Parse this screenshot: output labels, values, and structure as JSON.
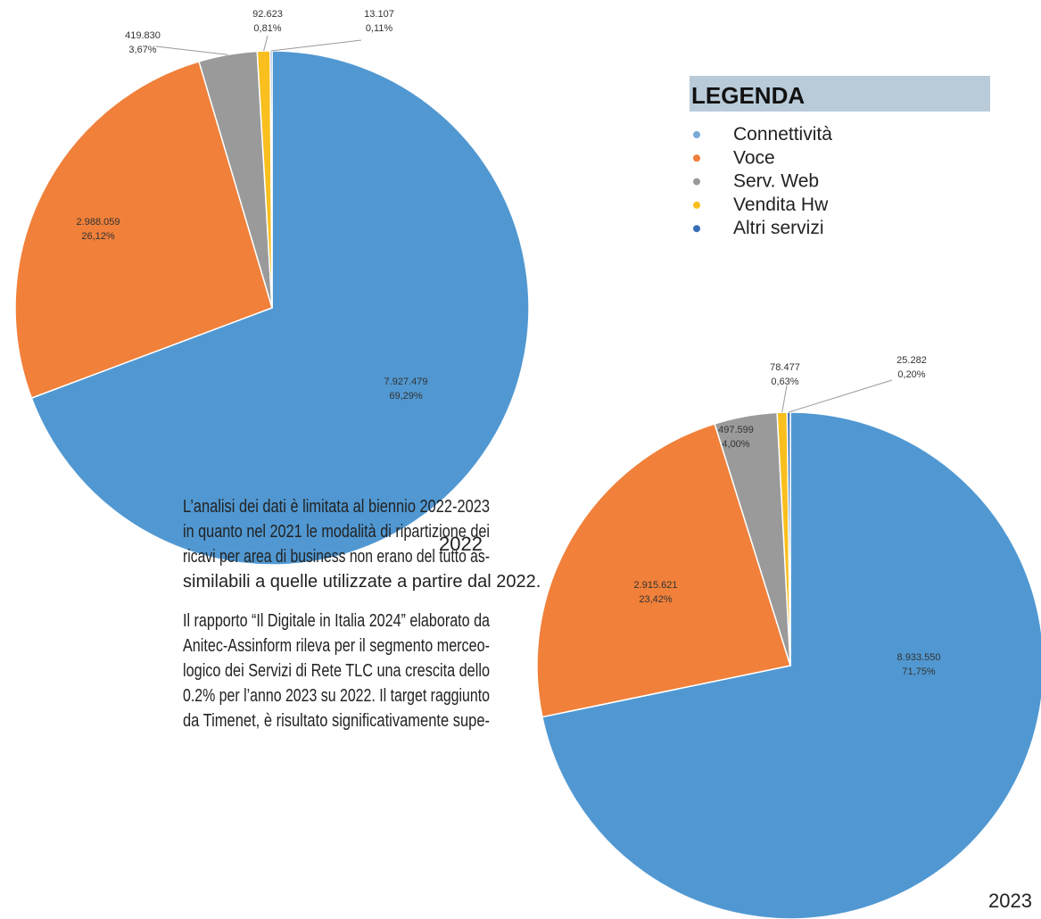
{
  "chart_data": [
    {
      "type": "pie",
      "label": "2022",
      "categories": [
        "Connettività",
        "Voce",
        "Serv. Web",
        "Vendita Hw",
        "Altri servizi"
      ],
      "colors": [
        "#5198d2",
        "#f0803a",
        "#9a9a9a",
        "#f9bf1e",
        "#3a6fb8"
      ],
      "values": [
        7927479,
        2988059,
        419830,
        92623,
        13107
      ],
      "value_labels": [
        "7.927.479",
        "2.988.059",
        "419.830",
        "92.623",
        "13.107"
      ],
      "percentages": [
        69.29,
        26.12,
        3.67,
        0.81,
        0.11
      ],
      "percentage_labels": [
        "69,29%",
        "26,12%",
        "3,67%",
        "0,81%",
        "0,11%"
      ]
    },
    {
      "type": "pie",
      "label": "2023",
      "categories": [
        "Connettività",
        "Voce",
        "Serv. Web",
        "Vendita Hw",
        "Altri servizi"
      ],
      "colors": [
        "#5198d2",
        "#f0803a",
        "#9a9a9a",
        "#f9bf1e",
        "#3a6fb8"
      ],
      "values": [
        8933550,
        2915621,
        497599,
        78477,
        25282
      ],
      "value_labels": [
        "8.933.550",
        "2.915.621",
        "497.599",
        "78.477",
        "25.282"
      ],
      "percentages": [
        71.75,
        23.42,
        4.0,
        0.63,
        0.2
      ],
      "percentage_labels": [
        "71,75%",
        "23,42%",
        "4,00%",
        "0,63%",
        "0,20%"
      ]
    }
  ],
  "legend": {
    "title": "LEGENDA",
    "colors": [
      "#7aaad8",
      "#f0803a",
      "#9a9a9a",
      "#f9bf1e",
      "#3a6fb8"
    ]
  },
  "text": {
    "paragraphs": [
      [
        "L’analisi dei dati è limitata al biennio 2022-2023",
        "in quanto nel 2021 le modalità di ripartizione dei",
        "ricavi per area di business non erano del tutto as-",
        "similabili a quelle utilizzate a partire dal 2022."
      ],
      [
        "Il rapporto “Il Digitale in Italia 2024” elaborato da",
        "Anitec-Assinform rileva per il segmento merceo-",
        "logico dei Servizi di Rete TLC  una crescita dello",
        "0.2% per l’anno 2023 su 2022. Il target raggiunto",
        "da Timenet, è risultato significativamente supe-"
      ]
    ]
  }
}
